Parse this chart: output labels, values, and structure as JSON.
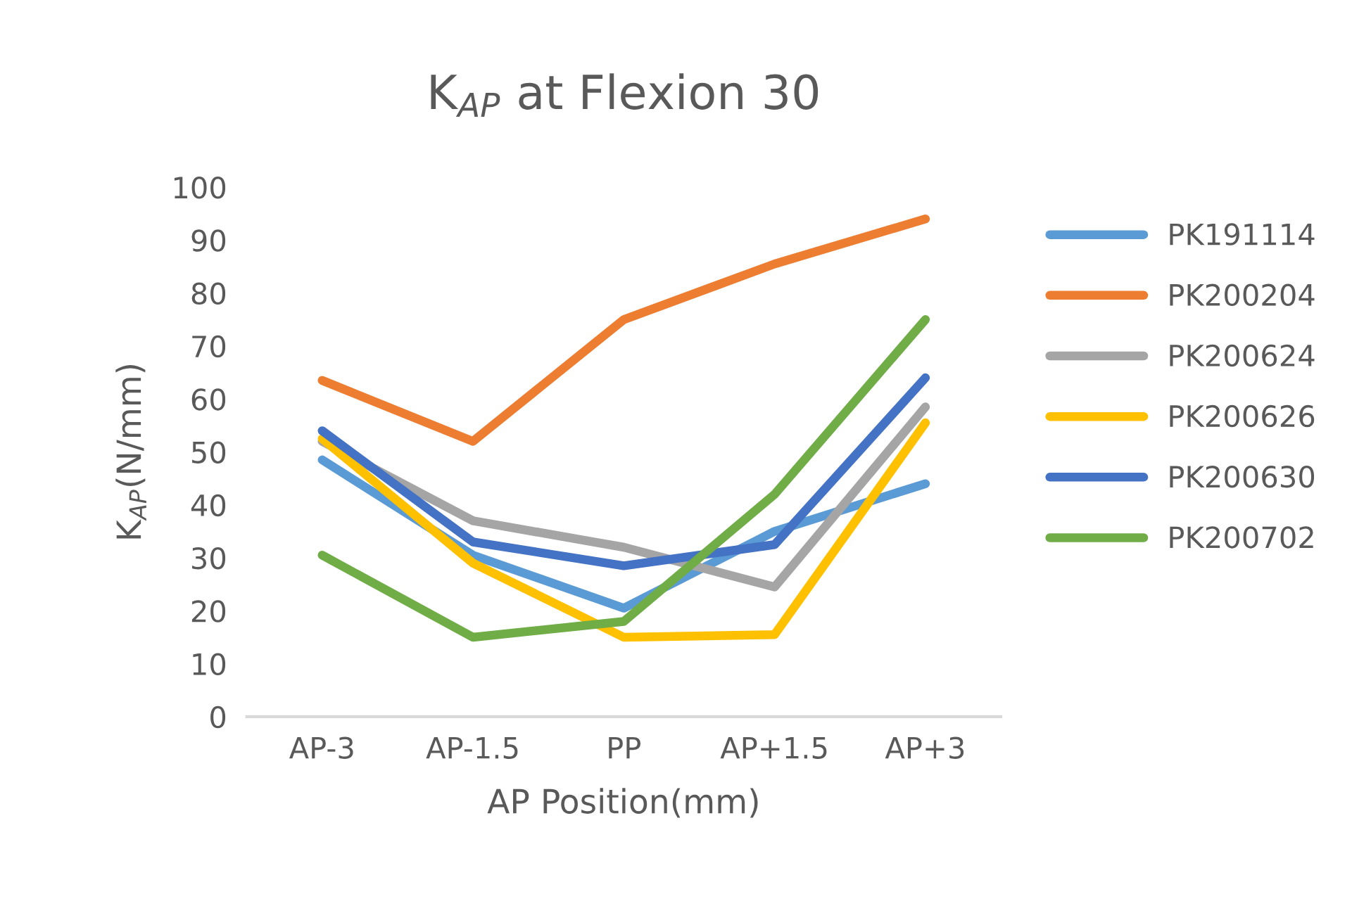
{
  "chart_data": {
    "type": "line",
    "title": "K$_{AP}$ at Flexion 30",
    "xlabel": "AP Position(mm)",
    "ylabel": "K$_{AP}$(N/mm)",
    "categories": [
      "AP-3",
      "AP-1.5",
      "PP",
      "AP+1.5",
      "AP+3"
    ],
    "series": [
      {
        "name": "PK191114",
        "color": "#5b9bd5",
        "values": [
          48.5,
          30.5,
          20.5,
          35,
          44
        ]
      },
      {
        "name": "PK200204",
        "color": "#ed7d31",
        "values": [
          63.5,
          52,
          75,
          85.5,
          94
        ]
      },
      {
        "name": "PK200624",
        "color": "#a5a5a5",
        "values": [
          52,
          37,
          32,
          24.5,
          58.5
        ]
      },
      {
        "name": "PK200626",
        "color": "#ffc000",
        "values": [
          52.5,
          29,
          15,
          15.5,
          55.5
        ]
      },
      {
        "name": "PK200630",
        "color": "#4472c4",
        "values": [
          54,
          33,
          28.5,
          32.5,
          64
        ]
      },
      {
        "name": "PK200702",
        "color": "#70ad47",
        "values": [
          30.5,
          15,
          18,
          42,
          75
        ]
      }
    ],
    "ylim": [
      0,
      100
    ],
    "yticks": [
      0,
      10,
      20,
      30,
      40,
      50,
      60,
      70,
      80,
      90,
      100
    ],
    "legend": "right",
    "grid": false,
    "marker": "none",
    "line_style": "solid"
  }
}
